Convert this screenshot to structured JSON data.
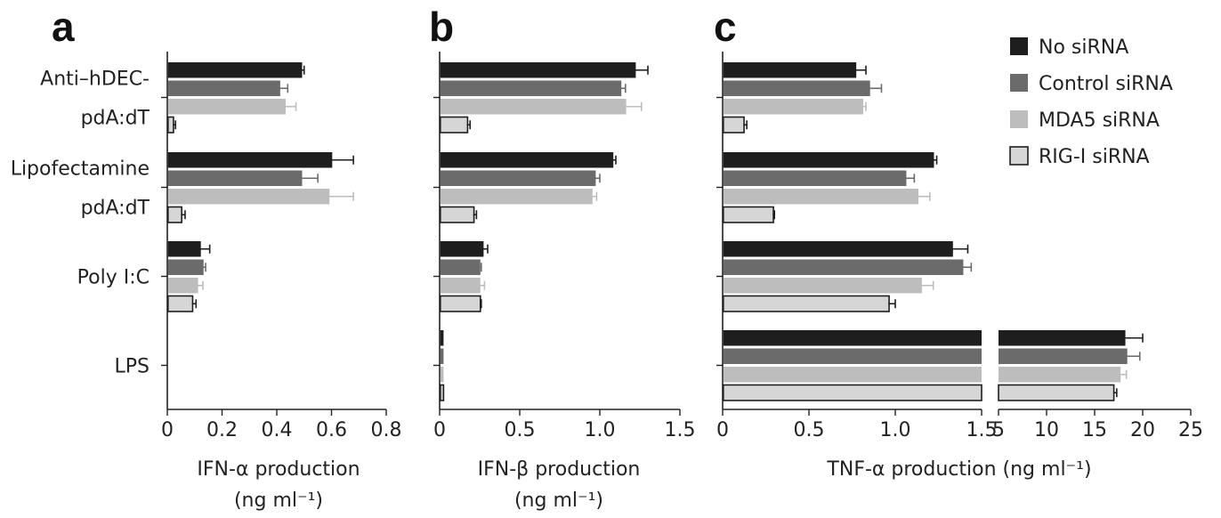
{
  "colors": {
    "No siRNA": "#1e1e1e",
    "Control siRNA": "#6b6b6b",
    "MDA5 siRNA": "#bdbdbd",
    "RIG-I siRNA": "#d6d6d6",
    "rig_border": "#1e1e1e",
    "error_no": "#1e1e1e",
    "error_control": "#6b6b6b",
    "error_mda5": "#bdbdbd",
    "error_rig": "#1e1e1e"
  },
  "legend": {
    "items": [
      "No siRNA",
      "Control siRNA",
      "MDA5 siRNA",
      "RIG-I siRNA"
    ]
  },
  "chart_data": [
    {
      "type": "bar",
      "orientation": "horizontal",
      "panel_label": "a",
      "categories": [
        [
          "Anti–hDEC-",
          "pdA:dT"
        ],
        [
          "Lipofectamine",
          "pdA:dT"
        ],
        [
          "Poly I:C"
        ],
        [
          "LPS"
        ]
      ],
      "series": [
        {
          "name": "No siRNA",
          "values": [
            0.49,
            0.6,
            0.12,
            0.0
          ],
          "errors": [
            0.01,
            0.08,
            0.035,
            0.0
          ]
        },
        {
          "name": "Control siRNA",
          "values": [
            0.41,
            0.49,
            0.13,
            0.0
          ],
          "errors": [
            0.03,
            0.06,
            0.01,
            0.0
          ]
        },
        {
          "name": "MDA5 siRNA",
          "values": [
            0.43,
            0.59,
            0.11,
            0.0
          ],
          "errors": [
            0.04,
            0.09,
            0.02,
            0.0
          ]
        },
        {
          "name": "RIG-I siRNA",
          "values": [
            0.02,
            0.05,
            0.09,
            0.0
          ],
          "errors": [
            0.01,
            0.015,
            0.015,
            0.0
          ]
        }
      ],
      "xlim": [
        0,
        0.8
      ],
      "xticks": [
        "0",
        "0.2",
        "0.4",
        "0.6",
        "0.8"
      ],
      "xlabel": [
        "IFN-α production",
        "(ng ml⁻¹)"
      ]
    },
    {
      "type": "bar",
      "orientation": "horizontal",
      "panel_label": "b",
      "categories": [
        [
          "Anti–hDEC-",
          "pdA:dT"
        ],
        [
          "Lipofectamine",
          "pdA:dT"
        ],
        [
          "Poly I:C"
        ],
        [
          "LPS"
        ]
      ],
      "series": [
        {
          "name": "No siRNA",
          "values": [
            1.22,
            1.08,
            0.27,
            0.02
          ],
          "errors": [
            0.08,
            0.02,
            0.03,
            0.0
          ]
        },
        {
          "name": "Control siRNA",
          "values": [
            1.13,
            0.97,
            0.25,
            0.02
          ],
          "errors": [
            0.03,
            0.03,
            0.01,
            0.0
          ]
        },
        {
          "name": "MDA5 siRNA",
          "values": [
            1.16,
            0.95,
            0.25,
            0.02
          ],
          "errors": [
            0.1,
            0.03,
            0.03,
            0.0
          ]
        },
        {
          "name": "RIG-I siRNA",
          "values": [
            0.17,
            0.21,
            0.25,
            0.02
          ],
          "errors": [
            0.02,
            0.02,
            0.01,
            0.0
          ]
        }
      ],
      "xlim": [
        0,
        1.5
      ],
      "xticks": [
        "0",
        "0.5",
        "1.0",
        "1.5"
      ],
      "xlabel": [
        "IFN-β production",
        "(ng ml⁻¹)"
      ]
    },
    {
      "type": "bar",
      "orientation": "horizontal",
      "panel_label": "c",
      "broken_axis": {
        "segment1": {
          "xlim": [
            0,
            1.5
          ],
          "xticks": [
            "0",
            "0.5",
            "1.0",
            "1.5"
          ]
        },
        "segment2": {
          "xlim": [
            5,
            25
          ],
          "xticks": [
            "5",
            "10",
            "15",
            "20",
            "25"
          ]
        }
      },
      "categories": [
        [
          "Anti–hDEC-",
          "pdA:dT"
        ],
        [
          "Lipofectamine",
          "pdA:dT"
        ],
        [
          "Poly I:C"
        ],
        [
          "LPS"
        ]
      ],
      "series": [
        {
          "name": "No siRNA",
          "values": [
            0.77,
            1.22,
            1.33,
            18.2
          ],
          "errors": [
            0.06,
            0.02,
            0.09,
            1.8
          ]
        },
        {
          "name": "Control siRNA",
          "values": [
            0.85,
            1.06,
            1.39,
            18.4
          ],
          "errors": [
            0.07,
            0.05,
            0.05,
            1.3
          ]
        },
        {
          "name": "MDA5 siRNA",
          "values": [
            0.81,
            1.13,
            1.15,
            17.7
          ],
          "errors": [
            0.02,
            0.07,
            0.07,
            0.6
          ]
        },
        {
          "name": "RIG-I siRNA",
          "values": [
            0.12,
            0.29,
            0.96,
            17.0
          ],
          "errors": [
            0.02,
            0.01,
            0.04,
            0.3
          ]
        }
      ],
      "xlabel": [
        "TNF-α production (ng ml⁻¹)"
      ]
    }
  ]
}
